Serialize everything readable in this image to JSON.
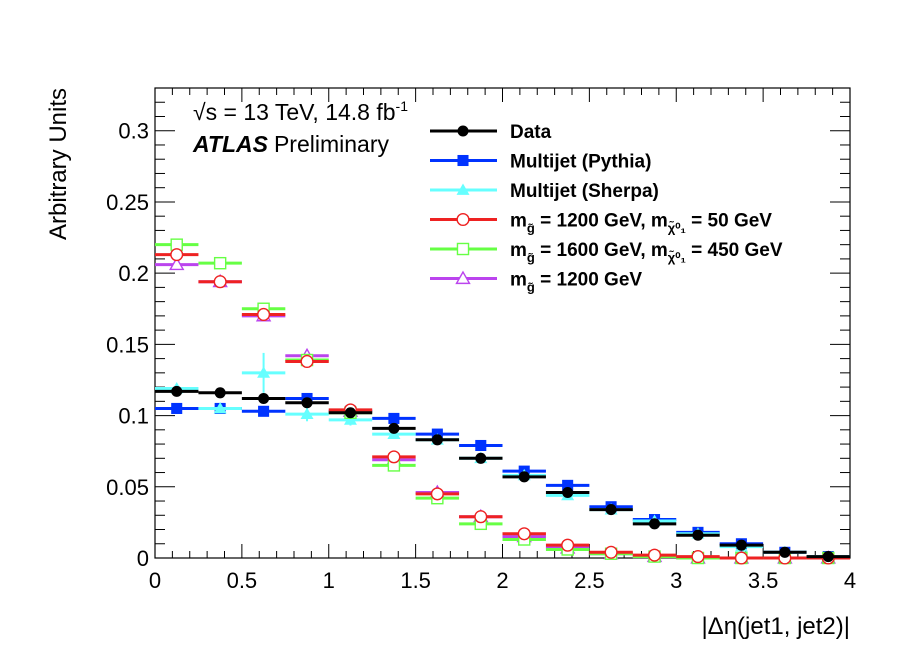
{
  "chart_data": {
    "type": "scatter",
    "xlabel": "|Δη(jet1, jet2)|",
    "ylabel": "Arbitrary Units",
    "xlim": [
      0,
      4
    ],
    "ylim": [
      0,
      0.33
    ],
    "xticks": [
      0,
      0.5,
      1,
      1.5,
      2,
      2.5,
      3,
      3.5,
      4
    ],
    "xtick_labels": [
      "0",
      "0.5",
      "1",
      "1.5",
      "2",
      "2.5",
      "3",
      "3.5",
      "4"
    ],
    "yticks": [
      0,
      0.05,
      0.1,
      0.15,
      0.2,
      0.25,
      0.3
    ],
    "ytick_labels": [
      "0",
      "0.05",
      "0.1",
      "0.15",
      "0.2",
      "0.25",
      "0.3"
    ],
    "bin_width": 0.25,
    "x": [
      0.125,
      0.375,
      0.625,
      0.875,
      1.125,
      1.375,
      1.625,
      1.875,
      2.125,
      2.375,
      2.625,
      2.875,
      3.125,
      3.375,
      3.625,
      3.875
    ],
    "annotations": {
      "energy_text": "√s = 13 TeV, 14.8 fb",
      "energy_superscript": "-1",
      "experiment": "ATLAS",
      "status": "Preliminary"
    },
    "legend_position": "top-right",
    "series": [
      {
        "name": "Data",
        "label_main": "Data",
        "label_sub": "",
        "label_tail": "",
        "label_sub2": "",
        "label_tail2": "",
        "color": "#000000",
        "marker": "circle-filled",
        "values": [
          0.117,
          0.116,
          0.112,
          0.109,
          0.102,
          0.091,
          0.083,
          0.07,
          0.057,
          0.046,
          0.034,
          0.024,
          0.016,
          0.009,
          0.004,
          0.001
        ],
        "errors": [
          0.0015,
          0.0015,
          0.0015,
          0.0015,
          0.0015,
          0.0015,
          0.0015,
          0.0015,
          0.0015,
          0.0015,
          0.0015,
          0.0015,
          0.0015,
          0.0015,
          0.0015,
          0.0015
        ]
      },
      {
        "name": "Multijet (Pythia)",
        "label_main": "Multijet (Pythia)",
        "label_sub": "",
        "label_tail": "",
        "label_sub2": "",
        "label_tail2": "",
        "color": "#0033ff",
        "marker": "square-filled",
        "values": [
          0.105,
          0.105,
          0.103,
          0.112,
          0.103,
          0.098,
          0.087,
          0.079,
          0.061,
          0.051,
          0.036,
          0.027,
          0.018,
          0.01,
          0.004,
          0.001
        ],
        "errors": [
          0.002,
          0.002,
          0.002,
          0.002,
          0.002,
          0.002,
          0.002,
          0.002,
          0.002,
          0.002,
          0.002,
          0.002,
          0.002,
          0.002,
          0.002,
          0.002
        ]
      },
      {
        "name": "Multijet (Sherpa)",
        "label_main": "Multijet (Sherpa)",
        "label_sub": "",
        "label_tail": "",
        "label_sub2": "",
        "label_tail2": "",
        "color": "#66ffff",
        "marker": "triangle-filled",
        "values": [
          0.119,
          0.105,
          0.13,
          0.101,
          0.097,
          0.087,
          0.083,
          0.07,
          0.058,
          0.044,
          0.034,
          0.026,
          0.017,
          0.008,
          0.004,
          0.001
        ],
        "errors": [
          0.003,
          0.003,
          0.014,
          0.005,
          0.004,
          0.003,
          0.003,
          0.003,
          0.003,
          0.003,
          0.002,
          0.002,
          0.002,
          0.002,
          0.001,
          0.001
        ]
      },
      {
        "name": "m_g̃ = 1200 GeV, m_χ̃⁰₁ = 50 GeV",
        "label_main": "m",
        "label_sub": "g̃",
        "label_tail": " = 1200 GeV, m",
        "label_sub2": "χ̃⁰₁",
        "label_tail2": " = 50 GeV",
        "color": "#ee2222",
        "marker": "circle-open",
        "values": [
          0.213,
          0.194,
          0.171,
          0.138,
          0.104,
          0.071,
          0.045,
          0.029,
          0.017,
          0.009,
          0.004,
          0.002,
          0.001,
          0.0,
          0.0,
          0.0
        ],
        "errors": [
          0.002,
          0.002,
          0.002,
          0.002,
          0.002,
          0.002,
          0.002,
          0.001,
          0.001,
          0.001,
          0.001,
          0.001,
          0.001,
          0.0,
          0.0,
          0.0
        ]
      },
      {
        "name": "m_g̃ = 1600 GeV, m_χ̃⁰₁ = 450 GeV",
        "label_main": "m",
        "label_sub": "g̃",
        "label_tail": " = 1600 GeV, m",
        "label_sub2": "χ̃⁰₁",
        "label_tail2": " = 450 GeV",
        "color": "#66ff44",
        "marker": "square-open",
        "values": [
          0.22,
          0.207,
          0.175,
          0.139,
          0.102,
          0.065,
          0.042,
          0.024,
          0.013,
          0.006,
          0.003,
          0.001,
          0.0,
          0.0,
          0.0,
          0.0
        ],
        "errors": [
          0.002,
          0.002,
          0.002,
          0.002,
          0.002,
          0.002,
          0.002,
          0.001,
          0.001,
          0.001,
          0.001,
          0.001,
          0.0,
          0.0,
          0.0,
          0.0
        ]
      },
      {
        "name": "m_g̃ = 1200 GeV",
        "label_main": "m",
        "label_sub": "g̃",
        "label_tail": " = 1200 GeV",
        "label_sub2": "",
        "label_tail2": "",
        "color": "#bb44ee",
        "marker": "triangle-open",
        "values": [
          0.206,
          0.194,
          0.17,
          0.142,
          0.103,
          0.069,
          0.046,
          0.029,
          0.015,
          0.007,
          0.003,
          0.001,
          0.0,
          0.0,
          0.0,
          0.0
        ],
        "errors": [
          0.002,
          0.002,
          0.002,
          0.002,
          0.002,
          0.002,
          0.002,
          0.001,
          0.001,
          0.001,
          0.001,
          0.001,
          0.0,
          0.0,
          0.0,
          0.0
        ]
      }
    ]
  }
}
